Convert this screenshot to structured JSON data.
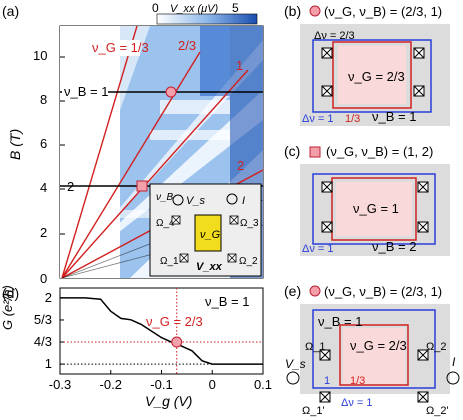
{
  "panel_a": {
    "label": "(a)",
    "ylabel": "B (T)",
    "yticks": [
      "0",
      "2",
      "4",
      "6",
      "8",
      "10"
    ],
    "colorbar": {
      "label": "V_xx (μV)",
      "min": "0",
      "max": "5"
    },
    "lines": [
      "ν_G = 1/3",
      "2/3",
      "1",
      "2"
    ],
    "nuB_labels": [
      "ν_B = 1",
      "2"
    ],
    "inset": {
      "vb": "ν_B",
      "vs": "V_s",
      "i": "I",
      "vg": "ν_G",
      "vxx": "V_xx",
      "o1": "Ω_1",
      "o2": "Ω_2",
      "o3": "Ω_3",
      "o4": "Ω_4"
    }
  },
  "panel_b": {
    "label": "(b)",
    "title": "(ν_G, ν_B) = (2/3, 1)",
    "center": "ν_G = 2/3",
    "dnu_top": "Δν = 2/3",
    "dnu_bottom": "Δν = 1",
    "frac": "1/3",
    "nuB": "ν_B = 1"
  },
  "panel_c": {
    "label": "(c)",
    "title": "(ν_G, ν_B) = (1, 2)",
    "center": "ν_G = 1",
    "dnu": "Δν = 1",
    "nuB": "ν_B = 2"
  },
  "panel_d": {
    "label": "(d)",
    "ylabel": "G (e²/h)",
    "xlabel": "V_g (V)",
    "yticks": [
      "1",
      "4/3",
      "5/3",
      "2"
    ],
    "xticks": [
      "-0.3",
      "-0.2",
      "-0.1",
      "0",
      "0.1"
    ],
    "nuB": "ν_B = 1",
    "marker_label": "ν_G = 2/3"
  },
  "panel_e": {
    "label": "(e)",
    "title": "(ν_G, ν_B) = (2/3, 1)",
    "nuB": "ν_B = 1",
    "center": "ν_G = 2/3",
    "vs": "V_s",
    "i": "I",
    "o1": "Ω_1",
    "o2": "Ω_2",
    "o1p": "Ω_1'",
    "o2p": "Ω_2'",
    "one": "1",
    "frac": "1/3",
    "dnu": "Δν = 1"
  },
  "chart_data": {
    "type": "line",
    "xlabel": "V_g (V)",
    "ylabel": "G (e²/h)",
    "xlim": [
      -0.3,
      0.1
    ],
    "ylim": [
      0.85,
      2.15
    ],
    "x": [
      -0.3,
      -0.28,
      -0.25,
      -0.22,
      -0.2,
      -0.18,
      -0.16,
      -0.14,
      -0.12,
      -0.1,
      -0.08,
      -0.06,
      -0.04,
      -0.02,
      0.0,
      0.05,
      0.1
    ],
    "values": [
      2.0,
      2.0,
      2.0,
      1.98,
      1.8,
      1.69,
      1.67,
      1.6,
      1.5,
      1.4,
      1.33,
      1.27,
      1.2,
      1.05,
      1.0,
      1.0,
      1.0
    ],
    "marker": {
      "x": -0.07,
      "y": 1.333
    }
  }
}
